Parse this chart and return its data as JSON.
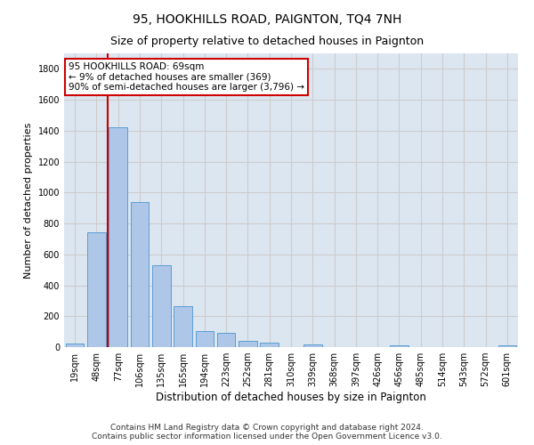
{
  "title1": "95, HOOKHILLS ROAD, PAIGNTON, TQ4 7NH",
  "title2": "Size of property relative to detached houses in Paignton",
  "xlabel": "Distribution of detached houses by size in Paignton",
  "ylabel": "Number of detached properties",
  "categories": [
    "19sqm",
    "48sqm",
    "77sqm",
    "106sqm",
    "135sqm",
    "165sqm",
    "194sqm",
    "223sqm",
    "252sqm",
    "281sqm",
    "310sqm",
    "339sqm",
    "368sqm",
    "397sqm",
    "426sqm",
    "456sqm",
    "485sqm",
    "514sqm",
    "543sqm",
    "572sqm",
    "601sqm"
  ],
  "values": [
    22,
    740,
    1420,
    937,
    532,
    265,
    105,
    93,
    40,
    27,
    0,
    15,
    0,
    0,
    0,
    13,
    0,
    0,
    0,
    0,
    13
  ],
  "bar_color": "#aec6e8",
  "bar_edgecolor": "#5a9fd4",
  "vline_color": "#cc0000",
  "annotation_text": "95 HOOKHILLS ROAD: 69sqm\n← 9% of detached houses are smaller (369)\n90% of semi-detached houses are larger (3,796) →",
  "annotation_box_color": "#ffffff",
  "annotation_box_edgecolor": "#cc0000",
  "ylim": [
    0,
    1900
  ],
  "yticks": [
    0,
    200,
    400,
    600,
    800,
    1000,
    1200,
    1400,
    1600,
    1800
  ],
  "grid_color": "#cccccc",
  "bg_color": "#dce6f0",
  "footer": "Contains HM Land Registry data © Crown copyright and database right 2024.\nContains public sector information licensed under the Open Government Licence v3.0.",
  "title1_fontsize": 10,
  "title2_fontsize": 9,
  "xlabel_fontsize": 8.5,
  "ylabel_fontsize": 8,
  "tick_fontsize": 7,
  "footer_fontsize": 6.5,
  "annotation_fontsize": 7.5
}
